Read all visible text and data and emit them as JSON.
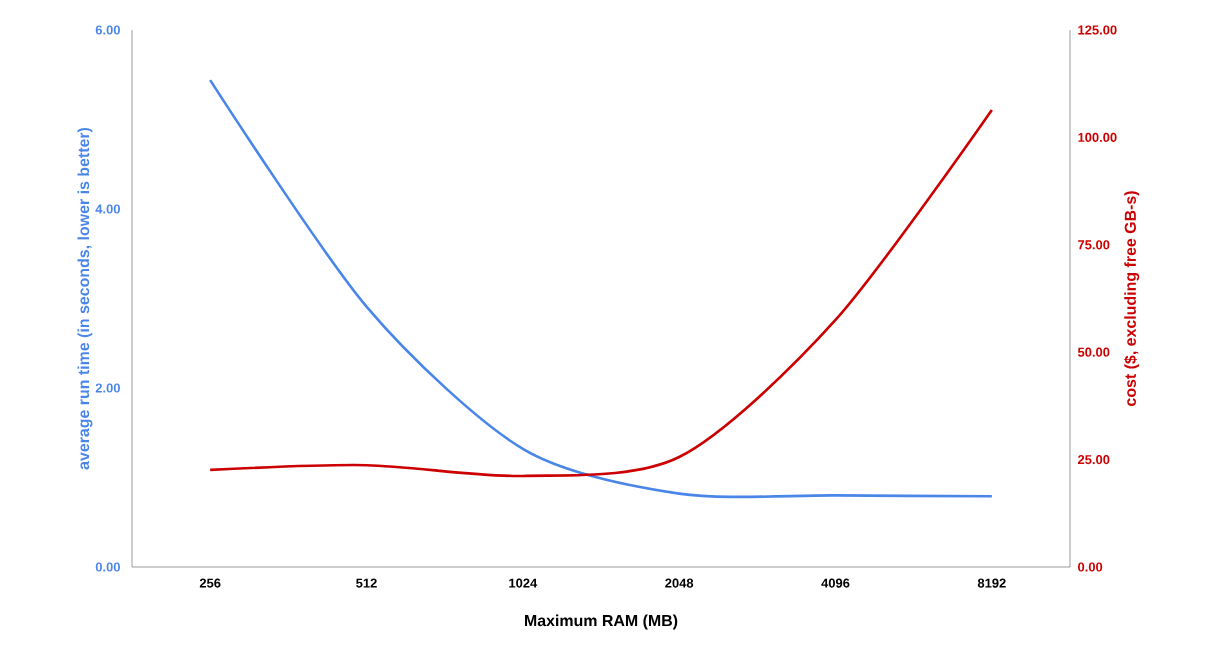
{
  "chart_data": {
    "type": "line",
    "xlabel": "Maximum RAM (MB)",
    "ylabel": "average run time (in seconds, lower is better)",
    "y2label": "cost ($, excluding free GB-s)",
    "categories": [
      "256",
      "512",
      "1024",
      "2048",
      "4096",
      "8192"
    ],
    "series": [
      {
        "color": "#4a86e8",
        "values": [
          5.44,
          2.91,
          1.32,
          0.82,
          0.8,
          0.79
        ]
      },
      {
        "color": "#cc0000",
        "axis": "y2",
        "values": [
          22.6,
          23.7,
          21.2,
          25.6,
          57.5,
          106.4
        ]
      }
    ],
    "ylim": [
      0,
      6
    ],
    "yticks": [
      {
        "value": 0,
        "label": "0.00"
      },
      {
        "value": 2,
        "label": "2.00"
      },
      {
        "value": 4,
        "label": "4.00"
      },
      {
        "value": 6,
        "label": "6.00"
      }
    ],
    "y2lim": [
      0,
      125
    ],
    "y2ticks": [
      {
        "value": 0,
        "label": "0.00"
      },
      {
        "value": 25,
        "label": "25.00"
      },
      {
        "value": 50,
        "label": "50.00"
      },
      {
        "value": 75,
        "label": "75.00"
      },
      {
        "value": 100,
        "label": "100.00"
      },
      {
        "value": 125,
        "label": "125.00"
      }
    ]
  }
}
